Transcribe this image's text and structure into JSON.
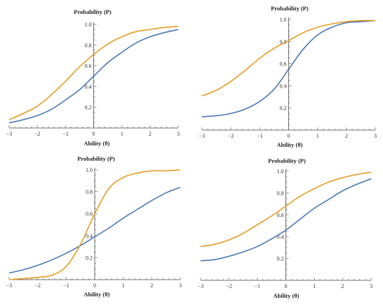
{
  "colors": {
    "series_1": "#4c78b5",
    "series_2": "#e79c22"
  },
  "chart_data": [
    {
      "type": "line",
      "xlabel": "Ability (θ)",
      "ylabel": "Probability (P)",
      "xlim": [
        -3,
        3
      ],
      "ylim": [
        0,
        1
      ],
      "xticks": [
        -3,
        -2,
        -1,
        0,
        1,
        2,
        3
      ],
      "yticks": [
        0.2,
        0.4,
        0.6,
        0.8,
        1.0
      ],
      "x": [
        -3,
        -2.5,
        -2,
        -1.5,
        -1,
        -0.5,
        0,
        0.5,
        1,
        1.5,
        2,
        2.5,
        3
      ],
      "series": [
        {
          "color": "series_1",
          "values": [
            0.05,
            0.08,
            0.12,
            0.18,
            0.27,
            0.37,
            0.5,
            0.63,
            0.73,
            0.82,
            0.88,
            0.92,
            0.95
          ]
        },
        {
          "color": "series_2",
          "values": [
            0.08,
            0.14,
            0.21,
            0.32,
            0.45,
            0.59,
            0.71,
            0.81,
            0.88,
            0.93,
            0.95,
            0.97,
            0.98
          ]
        }
      ]
    },
    {
      "type": "line",
      "xlabel": "Ability (θ)",
      "ylabel": "Probability (P)",
      "xlim": [
        -3,
        3
      ],
      "ylim": [
        0,
        1
      ],
      "xticks": [
        -3,
        -2,
        -1,
        0,
        1,
        2,
        3
      ],
      "yticks": [
        0.2,
        0.4,
        0.6,
        0.8,
        1.0
      ],
      "x": [
        -3,
        -2.5,
        -2,
        -1.5,
        -1,
        -0.5,
        0,
        0.5,
        1,
        1.5,
        2,
        2.5,
        3
      ],
      "series": [
        {
          "color": "series_1",
          "values": [
            0.12,
            0.13,
            0.15,
            0.19,
            0.26,
            0.37,
            0.55,
            0.73,
            0.86,
            0.93,
            0.97,
            0.98,
            0.99
          ]
        },
        {
          "color": "series_2",
          "values": [
            0.31,
            0.36,
            0.44,
            0.54,
            0.65,
            0.74,
            0.81,
            0.88,
            0.93,
            0.96,
            0.98,
            0.99,
            0.99
          ]
        }
      ]
    },
    {
      "type": "line",
      "xlabel": "Ability (θ)",
      "ylabel": "Probability (P)",
      "xlim": [
        -3,
        3
      ],
      "ylim": [
        0,
        1
      ],
      "xticks": [
        -3,
        -2,
        -1,
        0,
        1,
        2,
        3
      ],
      "yticks": [
        0.2,
        0.4,
        0.6,
        0.8,
        1.0
      ],
      "x": [
        -3,
        -2.5,
        -2,
        -1.5,
        -1,
        -0.5,
        0,
        0.5,
        1,
        1.5,
        2,
        2.5,
        3
      ],
      "series": [
        {
          "color": "series_1",
          "values": [
            0.06,
            0.09,
            0.13,
            0.18,
            0.24,
            0.31,
            0.39,
            0.47,
            0.56,
            0.64,
            0.72,
            0.79,
            0.84
          ]
        },
        {
          "color": "series_2",
          "values": [
            0.0,
            0.01,
            0.02,
            0.04,
            0.12,
            0.32,
            0.6,
            0.83,
            0.93,
            0.97,
            0.99,
            0.99,
            1.0
          ]
        }
      ]
    },
    {
      "type": "line",
      "xlabel": "Ability (θ)",
      "ylabel": "Probability (P)",
      "xlim": [
        -3,
        3
      ],
      "ylim": [
        0,
        1
      ],
      "xticks": [
        -3,
        -2,
        -1,
        0,
        1,
        2,
        3
      ],
      "yticks": [
        0.2,
        0.4,
        0.6,
        0.8,
        1.0
      ],
      "x": [
        -3,
        -2.5,
        -2,
        -1.5,
        -1,
        -0.5,
        0,
        0.5,
        1,
        1.5,
        2,
        2.5,
        3
      ],
      "series": [
        {
          "color": "series_1",
          "values": [
            0.18,
            0.19,
            0.22,
            0.26,
            0.31,
            0.38,
            0.46,
            0.56,
            0.66,
            0.74,
            0.82,
            0.88,
            0.93
          ]
        },
        {
          "color": "series_2",
          "values": [
            0.31,
            0.33,
            0.37,
            0.43,
            0.51,
            0.59,
            0.68,
            0.77,
            0.84,
            0.9,
            0.94,
            0.97,
            0.99
          ]
        }
      ]
    }
  ]
}
